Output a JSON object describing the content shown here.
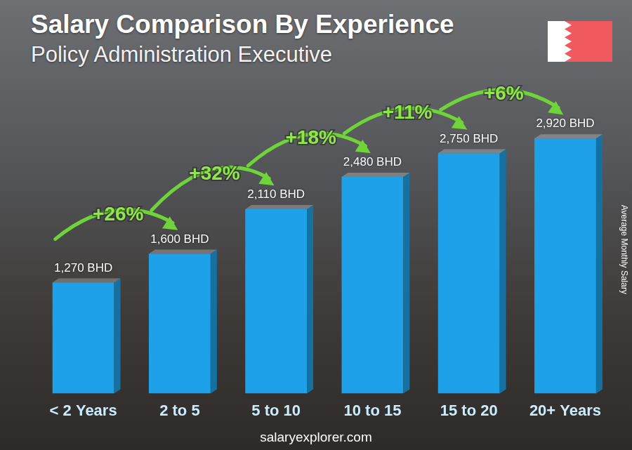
{
  "chart_data": {
    "type": "bar",
    "title": "Salary Comparison By Experience",
    "subtitle": "Policy Administration Executive",
    "ylabel": "Average Monthly Salary",
    "source": "salaryexplorer.com",
    "categories": [
      "< 2 Years",
      "2 to 5",
      "5 to 10",
      "10 to 15",
      "15 to 20",
      "20+ Years"
    ],
    "values": [
      1270,
      1600,
      2110,
      2480,
      2750,
      2920
    ],
    "value_labels": [
      "1,270 BHD",
      "1,600 BHD",
      "2,110 BHD",
      "2,480 BHD",
      "2,750 BHD",
      "2,920 BHD"
    ],
    "annotations": [
      "+26%",
      "+32%",
      "+18%",
      "+11%",
      "+6%"
    ],
    "color": "#1ea1e8",
    "ylim": [
      0,
      3300
    ],
    "grid": false,
    "data_labels": true,
    "tick_labels": "x"
  }
}
